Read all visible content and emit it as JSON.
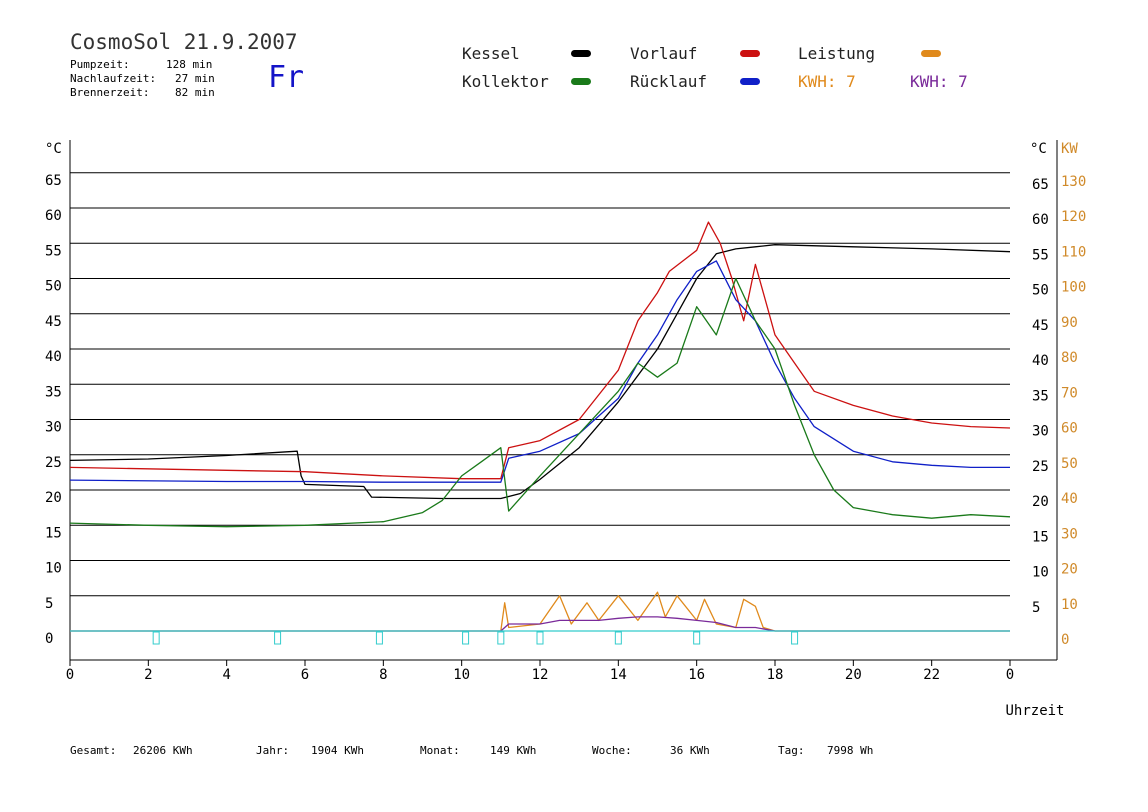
{
  "header": {
    "title": "CosmoSol 21.9.2007",
    "day": "Fr",
    "pump_label": "Pumpzeit:",
    "pump_value": "128 min",
    "nachlauf_label": "Nachlaufzeit:",
    "nachlauf_value": "27 min",
    "brenner_label": "Brennerzeit:",
    "brenner_value": "82 min"
  },
  "legend": {
    "kessel": "Kessel",
    "vorlauf": "Vorlauf",
    "leistung": "Leistung",
    "kollektor": "Kollektor",
    "ruecklauf": "Rücklauf",
    "kwh1": "KWH: 7",
    "kwh2": "KWH: 7"
  },
  "colors": {
    "kessel": "#000000",
    "vorlauf": "#cc1111",
    "ruecklauf": "#1020c8",
    "kollektor": "#1a7a1a",
    "leistung": "#e08a1c",
    "kwh2": "#7a2a9a",
    "baseline": "#33cccc",
    "axis_right": "#d08a2a"
  },
  "footer": {
    "gesamt_label": "Gesamt:",
    "gesamt_value": "26206 KWh",
    "jahr_label": "Jahr:",
    "jahr_value": "1904 KWh",
    "monat_label": "Monat:",
    "monat_value": "149 KWh",
    "woche_label": "Woche:",
    "woche_value": "36 KWh",
    "tag_label": "Tag:",
    "tag_value": "7998 Wh"
  },
  "chart_data": {
    "type": "line",
    "xlabel": "Uhrzeit",
    "ylabel_left": "°C",
    "ylabel_right_c": "°C",
    "ylabel_right_kw": "KW",
    "xlim": [
      0,
      24
    ],
    "ylim": [
      -2,
      70
    ],
    "x_ticks": [
      "0",
      "2",
      "4",
      "6",
      "8",
      "10",
      "12",
      "14",
      "16",
      "18",
      "20",
      "22",
      "0"
    ],
    "y_ticks_left": [
      0,
      5,
      10,
      15,
      20,
      25,
      30,
      35,
      40,
      45,
      50,
      55,
      60,
      65
    ],
    "y_ticks_right_c": [
      5,
      10,
      15,
      20,
      25,
      30,
      35,
      40,
      45,
      50,
      55,
      60,
      65
    ],
    "y_ticks_right_kw": [
      0,
      10,
      20,
      30,
      40,
      50,
      60,
      70,
      80,
      90,
      100,
      110,
      120,
      130
    ],
    "grid": "horizontal",
    "series": [
      {
        "name": "Kessel",
        "color_key": "kessel",
        "x": [
          0,
          2,
          4,
          5.8,
          5.9,
          6.0,
          7.5,
          7.7,
          9.5,
          11.0,
          11.5,
          12.0,
          13.0,
          14.0,
          15.0,
          15.5,
          16.0,
          16.5,
          17.0,
          17.5,
          18.0,
          20.0,
          22.0,
          24.0
        ],
        "y": [
          24.2,
          24.4,
          24.9,
          25.5,
          22.0,
          20.8,
          20.5,
          19.0,
          18.8,
          18.8,
          19.5,
          21.5,
          26.0,
          32.5,
          40.0,
          45.0,
          50.0,
          53.5,
          54.2,
          54.5,
          54.8,
          54.5,
          54.2,
          53.8
        ]
      },
      {
        "name": "Vorlauf",
        "color_key": "vorlauf",
        "x": [
          0,
          4,
          6,
          8,
          10,
          11.0,
          11.2,
          12.0,
          13.0,
          14.0,
          14.5,
          15.0,
          15.3,
          16.0,
          16.3,
          16.6,
          16.9,
          17.2,
          17.5,
          17.8,
          18.0,
          18.5,
          19.0,
          20.0,
          21.0,
          22.0,
          23.0,
          24.0
        ],
        "y": [
          23.2,
          22.8,
          22.6,
          22.0,
          21.6,
          21.6,
          26.0,
          27.0,
          30.0,
          37.0,
          44.0,
          48.0,
          51.0,
          54.0,
          58.0,
          55.0,
          50.0,
          44.0,
          52.0,
          46.0,
          42.0,
          38.0,
          34.0,
          32.0,
          30.5,
          29.5,
          29.0,
          28.8
        ]
      },
      {
        "name": "Rücklauf",
        "color_key": "ruecklauf",
        "x": [
          0,
          4,
          6,
          8,
          10,
          11.0,
          11.2,
          12.0,
          13.0,
          14.0,
          14.5,
          15.0,
          15.5,
          16.0,
          16.5,
          17.0,
          17.5,
          18.0,
          18.5,
          19.0,
          20.0,
          21.0,
          22.0,
          23.0,
          24.0
        ],
        "y": [
          21.4,
          21.2,
          21.2,
          21.1,
          21.1,
          21.1,
          24.5,
          25.5,
          28.0,
          33.0,
          38.0,
          42.0,
          47.0,
          51.0,
          52.5,
          47.0,
          44.0,
          38.0,
          33.0,
          29.0,
          25.5,
          24.0,
          23.5,
          23.2,
          23.2
        ]
      },
      {
        "name": "Kollektor",
        "color_key": "kollektor",
        "x": [
          0,
          2,
          4,
          6,
          8,
          9,
          9.5,
          10,
          10.5,
          11.0,
          11.2,
          12.0,
          13.0,
          14.0,
          14.5,
          15.0,
          15.5,
          16.0,
          16.5,
          17.0,
          17.5,
          18.0,
          18.5,
          19.0,
          19.5,
          20.0,
          21.0,
          22.0,
          23.0,
          24.0
        ],
        "y": [
          15.3,
          15.0,
          14.8,
          15.0,
          15.5,
          16.8,
          18.5,
          22.0,
          24.0,
          26.0,
          17.0,
          22.0,
          28.0,
          34.0,
          38.0,
          36.0,
          38.0,
          46.0,
          42.0,
          50.0,
          44.0,
          40.0,
          32.0,
          25.0,
          20.0,
          17.5,
          16.5,
          16.0,
          16.5,
          16.2
        ]
      },
      {
        "name": "Leistung",
        "color_key": "leistung",
        "x": [
          0,
          11.0,
          11.1,
          11.2,
          12.0,
          12.5,
          12.8,
          13.2,
          13.5,
          14.0,
          14.5,
          15.0,
          15.2,
          15.5,
          16.0,
          16.2,
          16.5,
          17.0,
          17.2,
          17.5,
          17.7,
          18.0,
          24.0
        ],
        "y": [
          0,
          0,
          4.0,
          0.5,
          1.0,
          5.0,
          1.0,
          4.0,
          1.5,
          5.0,
          1.5,
          5.5,
          2.0,
          5.0,
          1.5,
          4.5,
          1.0,
          0.5,
          4.5,
          3.5,
          0.5,
          0,
          0
        ]
      },
      {
        "name": "KWH",
        "color_key": "kwh2",
        "x": [
          0,
          11.0,
          11.2,
          12.0,
          12.5,
          13.0,
          13.5,
          14.0,
          14.5,
          15.0,
          15.5,
          16.0,
          16.5,
          17.0,
          17.5,
          18.0,
          24.0
        ],
        "y": [
          0,
          0,
          1.0,
          1.0,
          1.5,
          1.5,
          1.5,
          1.8,
          2.0,
          2.0,
          1.8,
          1.5,
          1.2,
          0.5,
          0.5,
          0,
          0
        ]
      },
      {
        "name": "Baseline",
        "color_key": "baseline",
        "x": [
          0,
          24
        ],
        "y": [
          0,
          0
        ]
      }
    ],
    "markers_x": [
      2.2,
      5.3,
      7.9,
      10.1,
      11.0,
      12.0,
      14.0,
      16.0,
      18.5
    ]
  }
}
